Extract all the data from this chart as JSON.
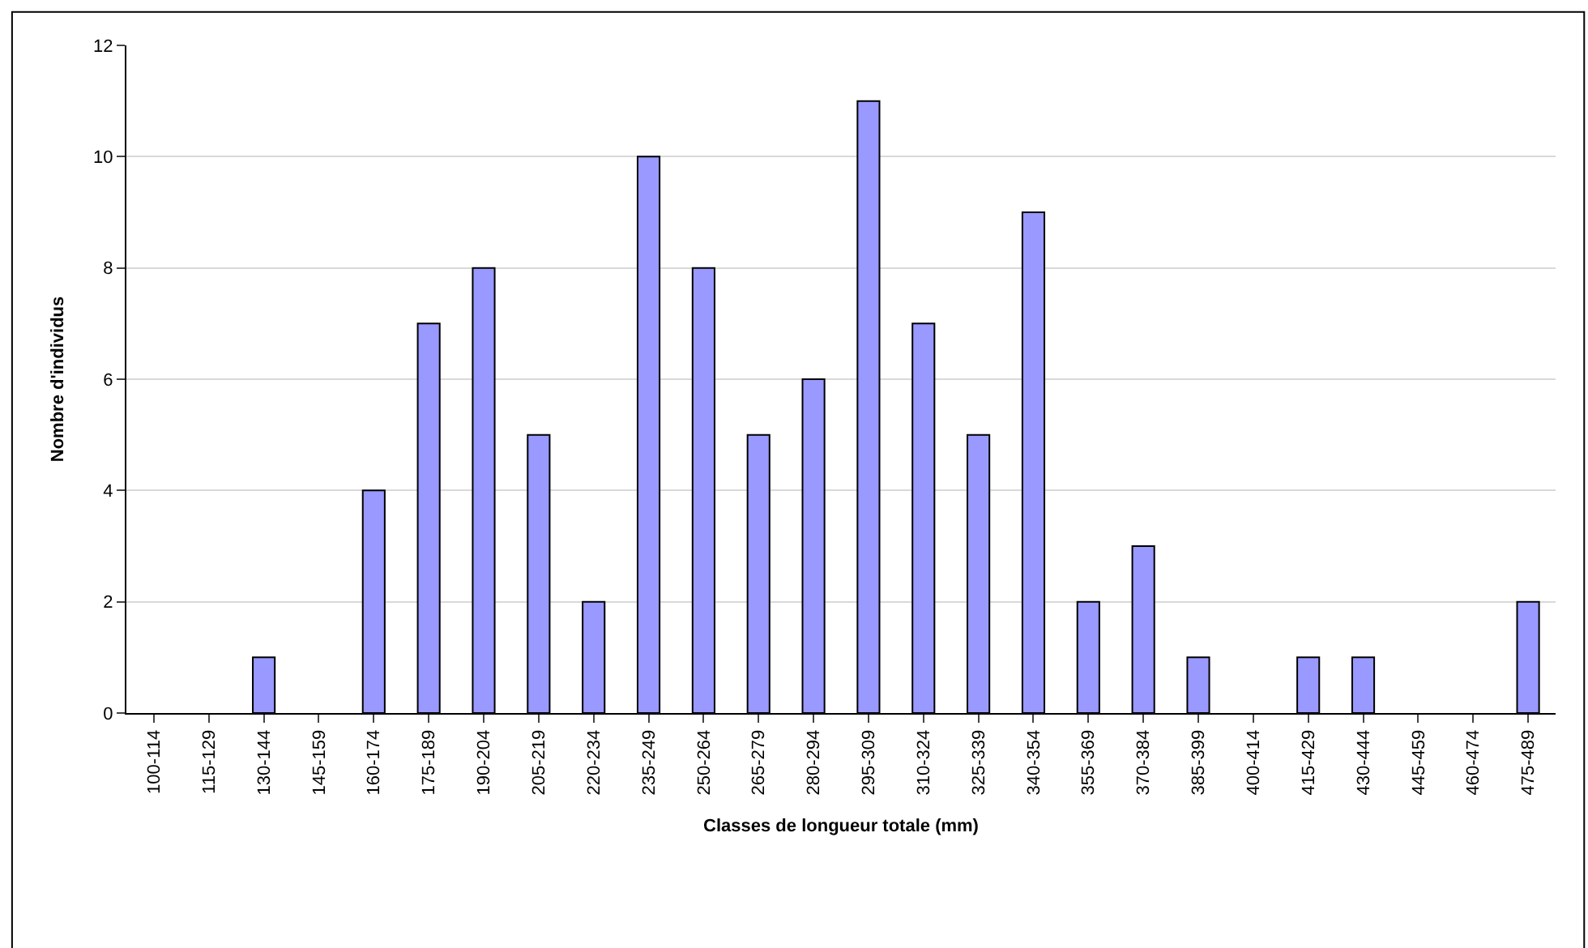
{
  "chart_data": {
    "type": "bar",
    "xlabel": "Classes de longueur totale (mm)",
    "ylabel": "Nombre d'individus",
    "categories": [
      "100-114",
      "115-129",
      "130-144",
      "145-159",
      "160-174",
      "175-189",
      "190-204",
      "205-219",
      "220-234",
      "235-249",
      "250-264",
      "265-279",
      "280-294",
      "295-309",
      "310-324",
      "325-339",
      "340-354",
      "355-369",
      "370-384",
      "385-399",
      "400-414",
      "415-429",
      "430-444",
      "445-459",
      "460-474",
      "475-489"
    ],
    "values": [
      0,
      0,
      1,
      0,
      4,
      7,
      8,
      5,
      2,
      10,
      8,
      5,
      6,
      11,
      7,
      5,
      9,
      2,
      3,
      1,
      0,
      1,
      1,
      0,
      0,
      2
    ],
    "color": "#9999ff",
    "ylim": [
      0,
      12
    ],
    "yticks": [
      0,
      2,
      4,
      6,
      8,
      10,
      12
    ],
    "grid": "y",
    "legend": false
  }
}
